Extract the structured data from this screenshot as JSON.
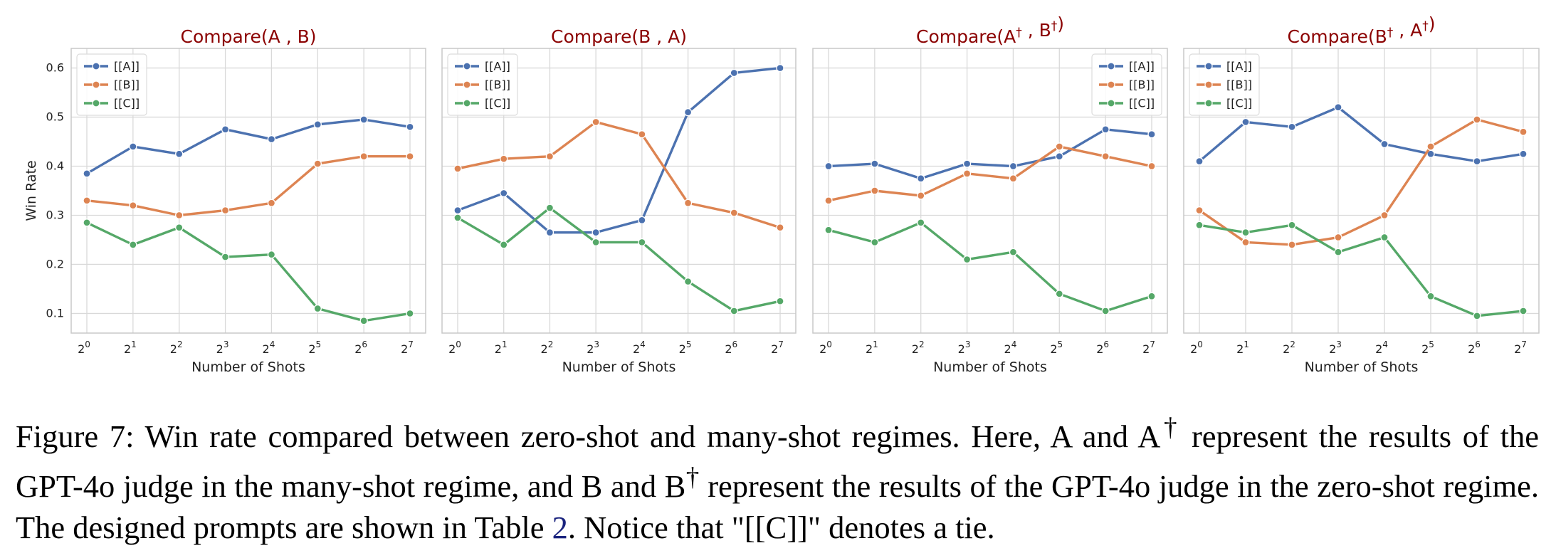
{
  "chart_data": [
    {
      "type": "line",
      "title": "Compare(A , B)",
      "xlabel": "Number of Shots",
      "ylabel": "Win Rate",
      "x": [
        "2^0",
        "2^1",
        "2^2",
        "2^3",
        "2^4",
        "2^5",
        "2^6",
        "2^7"
      ],
      "ylim": [
        0.06,
        0.64
      ],
      "yticks": [
        "0.1",
        "0.2",
        "0.3",
        "0.4",
        "0.5",
        "0.6"
      ],
      "legend": "top-left",
      "grid": true,
      "series": [
        {
          "name": "[[A]]",
          "color": "#4c72b0",
          "values": [
            0.385,
            0.44,
            0.425,
            0.475,
            0.455,
            0.485,
            0.495,
            0.48
          ]
        },
        {
          "name": "[[B]]",
          "color": "#dd8452",
          "values": [
            0.33,
            0.32,
            0.3,
            0.31,
            0.325,
            0.405,
            0.42,
            0.42
          ]
        },
        {
          "name": "[[C]]",
          "color": "#55a868",
          "values": [
            0.285,
            0.24,
            0.275,
            0.215,
            0.22,
            0.11,
            0.085,
            0.1
          ]
        }
      ]
    },
    {
      "type": "line",
      "title": "Compare(B , A)",
      "xlabel": "Number of Shots",
      "ylabel": "",
      "x": [
        "2^0",
        "2^1",
        "2^2",
        "2^3",
        "2^4",
        "2^5",
        "2^6",
        "2^7"
      ],
      "ylim": [
        0.06,
        0.64
      ],
      "yticks": [],
      "legend": "top-left",
      "grid": true,
      "series": [
        {
          "name": "[[A]]",
          "color": "#4c72b0",
          "values": [
            0.31,
            0.345,
            0.265,
            0.265,
            0.29,
            0.51,
            0.59,
            0.6
          ]
        },
        {
          "name": "[[B]]",
          "color": "#dd8452",
          "values": [
            0.395,
            0.415,
            0.42,
            0.49,
            0.465,
            0.325,
            0.305,
            0.275
          ]
        },
        {
          "name": "[[C]]",
          "color": "#55a868",
          "values": [
            0.295,
            0.24,
            0.315,
            0.245,
            0.245,
            0.165,
            0.105,
            0.125
          ]
        }
      ]
    },
    {
      "type": "line",
      "title": "Compare(A† , B†)",
      "xlabel": "Number of Shots",
      "ylabel": "",
      "x": [
        "2^0",
        "2^1",
        "2^2",
        "2^3",
        "2^4",
        "2^5",
        "2^6",
        "2^7"
      ],
      "ylim": [
        0.06,
        0.64
      ],
      "yticks": [],
      "legend": "top-right",
      "grid": true,
      "series": [
        {
          "name": "[[A]]",
          "color": "#4c72b0",
          "values": [
            0.4,
            0.405,
            0.375,
            0.405,
            0.4,
            0.42,
            0.475,
            0.465
          ]
        },
        {
          "name": "[[B]]",
          "color": "#dd8452",
          "values": [
            0.33,
            0.35,
            0.34,
            0.385,
            0.375,
            0.44,
            0.42,
            0.4
          ]
        },
        {
          "name": "[[C]]",
          "color": "#55a868",
          "values": [
            0.27,
            0.245,
            0.285,
            0.21,
            0.225,
            0.14,
            0.105,
            0.135
          ]
        }
      ]
    },
    {
      "type": "line",
      "title": "Compare(B† , A†)",
      "xlabel": "Number of Shots",
      "ylabel": "",
      "x": [
        "2^0",
        "2^1",
        "2^2",
        "2^3",
        "2^4",
        "2^5",
        "2^6",
        "2^7"
      ],
      "ylim": [
        0.06,
        0.64
      ],
      "yticks": [],
      "legend": "top-left",
      "grid": true,
      "series": [
        {
          "name": "[[A]]",
          "color": "#4c72b0",
          "values": [
            0.41,
            0.49,
            0.48,
            0.52,
            0.445,
            0.425,
            0.41,
            0.425
          ]
        },
        {
          "name": "[[B]]",
          "color": "#dd8452",
          "values": [
            0.31,
            0.245,
            0.24,
            0.255,
            0.3,
            0.44,
            0.495,
            0.47
          ]
        },
        {
          "name": "[[C]]",
          "color": "#55a868",
          "values": [
            0.28,
            0.265,
            0.28,
            0.225,
            0.255,
            0.135,
            0.095,
            0.105
          ]
        }
      ]
    }
  ],
  "caption": {
    "label": "Figure 7:",
    "text1": "Win rate compared between zero-shot and many-shot regimes. Here, A and A",
    "dagger1": "†",
    "text2": " represent the results of the GPT-4o judge in the many-shot regime, and B and B",
    "dagger2": "†",
    "text3": " represent the results of the GPT-4o judge in the zero-shot regime. The designed prompts are shown in Table ",
    "table_ref": "2",
    "text4": ". Notice that \"[[C]]\" denotes a tie."
  }
}
